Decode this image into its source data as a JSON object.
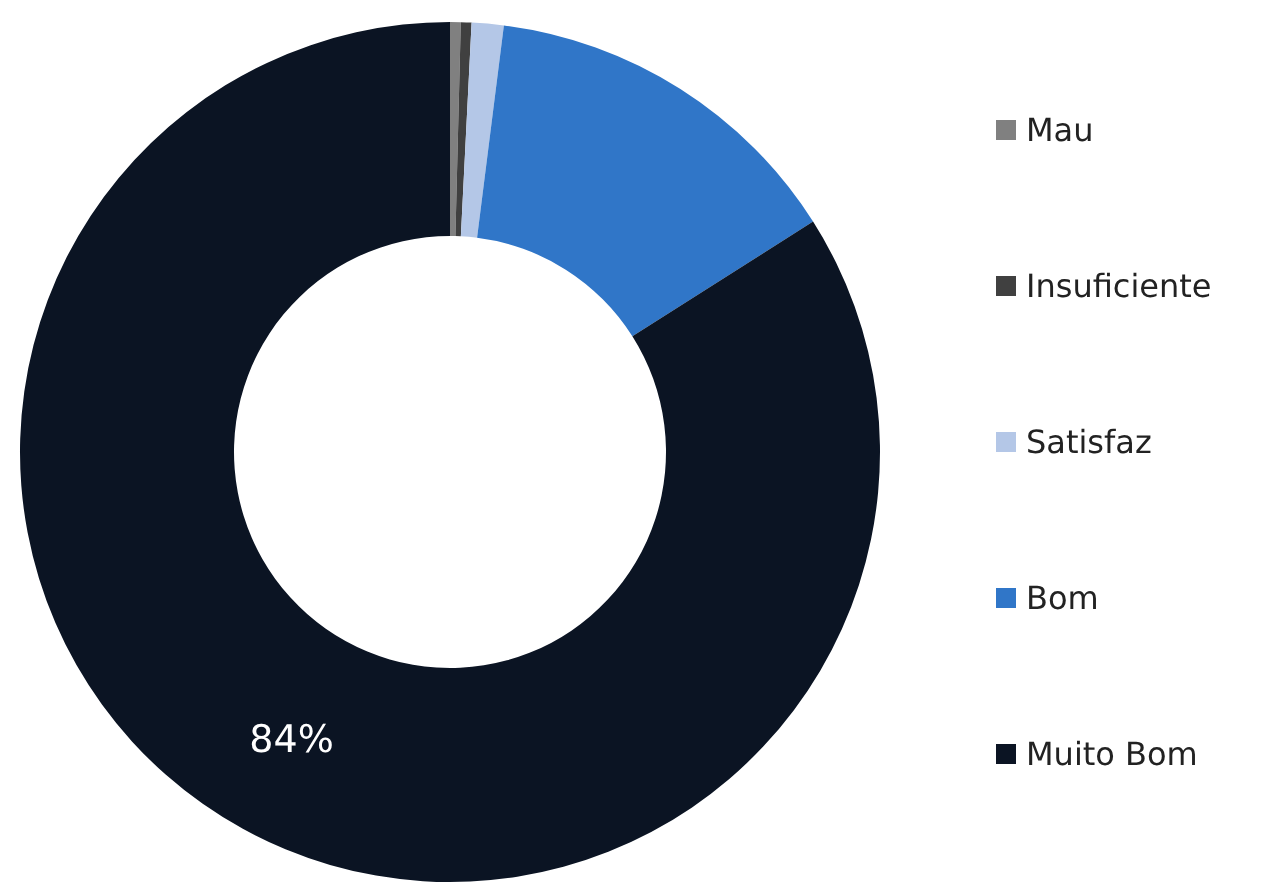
{
  "chart_data": {
    "type": "donut",
    "categories": [
      "Mau",
      "Insuficiente",
      "Satisfaz",
      "Bom",
      "Muito Bom"
    ],
    "values": [
      0.4,
      0.4,
      1.2,
      14,
      84
    ],
    "colors": [
      "#808080",
      "#404040",
      "#b4c7e7",
      "#3076c8",
      "#0b1423"
    ],
    "value_labels": [
      null,
      null,
      null,
      null,
      "84%"
    ],
    "legend": "right"
  }
}
